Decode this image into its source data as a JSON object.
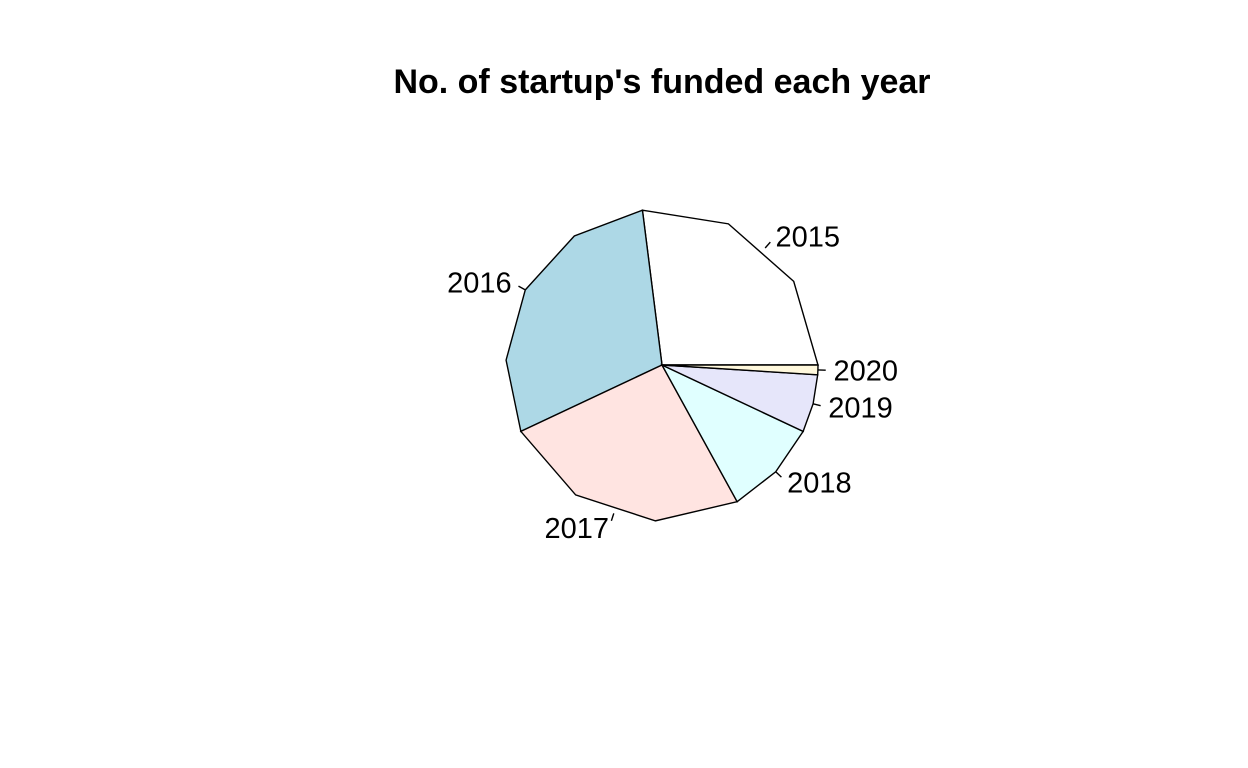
{
  "chart_data": {
    "type": "pie",
    "title": "No. of startup's funded each year",
    "categories": [
      "2015",
      "2016",
      "2017",
      "2018",
      "2019",
      "2020"
    ],
    "values": [
      27,
      30,
      26,
      10,
      6,
      1
    ],
    "colors": [
      "#ffffff",
      "#add8e6",
      "#ffe4e1",
      "#e0ffff",
      "#e6e6fa",
      "#fff8dc"
    ],
    "start_angle_deg": 0,
    "direction": "counterclockwise"
  }
}
